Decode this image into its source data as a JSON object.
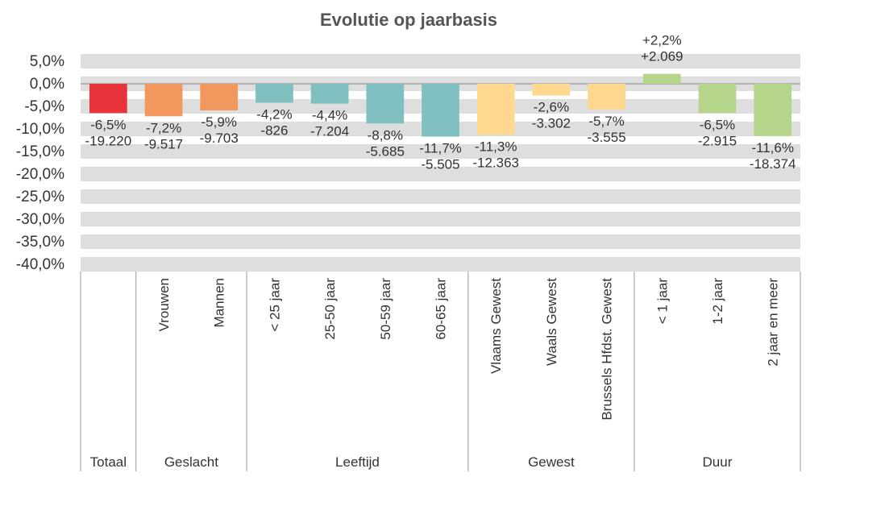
{
  "chart_data": {
    "type": "bar",
    "title": "Evolutie op jaarbasis",
    "ylim": [
      -41.6,
      6.6
    ],
    "yticks": [
      {
        "value": 5,
        "label": "5,0%"
      },
      {
        "value": 0,
        "label": "0,0%"
      },
      {
        "value": -5,
        "label": "-5,0%"
      },
      {
        "value": -10,
        "label": "-10,0%"
      },
      {
        "value": -15,
        "label": "-15,0%"
      },
      {
        "value": -20,
        "label": "-20,0%"
      },
      {
        "value": -25,
        "label": "-25,0%"
      },
      {
        "value": -30,
        "label": "-30,0%"
      },
      {
        "value": -35,
        "label": "-35,0%"
      },
      {
        "value": -40,
        "label": "-40,0%"
      }
    ],
    "grid": true,
    "groups": [
      {
        "name": "Totaal",
        "color": "#e8333a",
        "categories": [
          null
        ]
      },
      {
        "name": "Geslacht",
        "color": "#f2985f",
        "categories": [
          "Vrouwen",
          "Mannen"
        ]
      },
      {
        "name": "Leeftijd",
        "color": "#7fbfbf",
        "categories": [
          "< 25 jaar",
          "25-50 jaar",
          "50-59 jaar",
          "60-65 jaar"
        ]
      },
      {
        "name": "Gewest",
        "color": "#fed88f",
        "categories": [
          "Vlaams Gewest",
          "Waals Gewest",
          "Brussels Hfdst. Gewest"
        ]
      },
      {
        "name": "Duur",
        "color": "#b5d68a",
        "categories": [
          "< 1 jaar",
          "1-2 jaar",
          "2 jaar en meer"
        ]
      }
    ],
    "values": [
      -6.5,
      -7.2,
      -5.9,
      -4.2,
      -4.4,
      -8.8,
      -11.7,
      -11.3,
      -2.6,
      -5.7,
      2.2,
      -6.5,
      -11.6
    ],
    "value_labels": [
      "-6,5%",
      "-7,2%",
      "-5,9%",
      "-4,2%",
      "-4,4%",
      "-8,8%",
      "-11,7%",
      "-11,3%",
      "-2,6%",
      "-5,7%",
      "+2,2%",
      "-6,5%",
      "-11,6%"
    ],
    "counts": [
      -19220,
      -9517,
      -9703,
      -826,
      -7204,
      -5685,
      -5505,
      -12363,
      -3302,
      -3555,
      2069,
      -2915,
      -18374
    ],
    "count_labels": [
      "-19.220",
      "-9.517",
      "-9.703",
      "-826",
      "-7.204",
      "-5.685",
      "-5.505",
      "-12.363",
      "-3.302",
      "-3.555",
      "+2.069",
      "-2.915",
      "-18.374"
    ]
  }
}
